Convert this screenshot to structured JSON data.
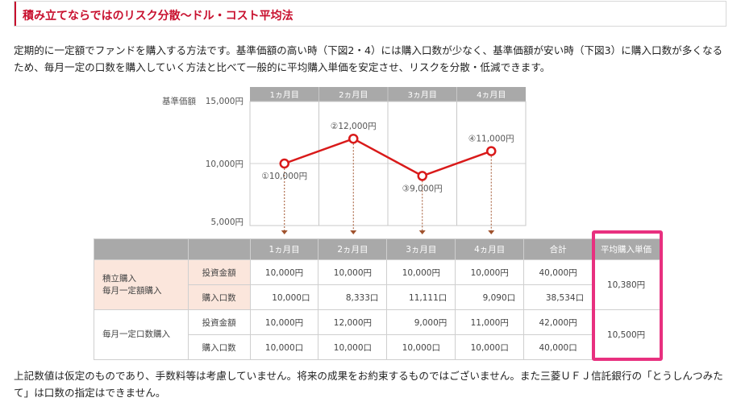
{
  "header": {
    "title": "積み立てならではのリスク分散〜ドル・コスト平均法"
  },
  "description": "定期的に一定額でファンドを購入する方法です。基準価額の高い時（下図2・4）には購入口数が少なく、基準価額が安い時（下図3）に購入口数が多くなるため、毎月一定の口数を購入していく方法と比べて一般的に平均購入単価を安定させ、リスクを分散・低減できます。",
  "chart_data": {
    "type": "line",
    "ylabel": "基準価額",
    "ylim": [
      5000,
      15000
    ],
    "yticks": [
      "15,000円",
      "10,000円",
      "5,000円"
    ],
    "categories": [
      "1ヵ月目",
      "2ヵ月目",
      "3ヵ月目",
      "4ヵ月目"
    ],
    "values": [
      10000,
      12000,
      9000,
      11000
    ],
    "point_labels": [
      "①10,000円",
      "②12,000円",
      "③9,000円",
      "④11,000円"
    ],
    "line_color": "#d91a1a"
  },
  "table": {
    "headers": [
      "1ヵ月目",
      "2ヵ月目",
      "3ヵ月目",
      "4ヵ月目",
      "合計",
      "平均購入単価"
    ],
    "groups": [
      {
        "name_line1": "積立購入",
        "name_line2": "毎月一定額購入",
        "rows": [
          {
            "label": "投資金額",
            "values": [
              "10,000円",
              "10,000円",
              "10,000円",
              "10,000円",
              "40,000円"
            ]
          },
          {
            "label": "購入口数",
            "values": [
              "10,000口",
              "8,333口",
              "11,111口",
              "9,090口",
              "38,534口"
            ]
          }
        ],
        "average": "10,380円"
      },
      {
        "name_line1": "毎月一定口数購入",
        "name_line2": "",
        "rows": [
          {
            "label": "投資金額",
            "values": [
              "10,000円",
              "12,000円",
              "9,000円",
              "11,000円",
              "42,000円"
            ]
          },
          {
            "label": "購入口数",
            "values": [
              "10,000口",
              "10,000口",
              "10,000口",
              "10,000口",
              "40,000口"
            ]
          }
        ],
        "average": "10,500円"
      }
    ]
  },
  "footnote": "上記数値は仮定のものであり、手数料等は考慮していません。将来の成果をお約束するものではございません。また三菱ＵＦＪ信託銀行の「とうしんつみたて」は口数の指定はできません。",
  "colors": {
    "accent": "#c8102e",
    "highlight": "#e8307f",
    "arrow": "#a0522d"
  }
}
